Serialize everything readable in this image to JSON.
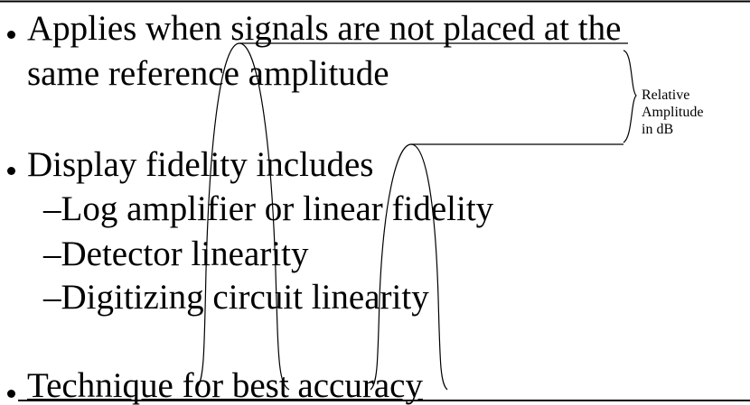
{
  "bullets": [
    {
      "lines": [
        "Applies when signals are not placed at the",
        "same reference amplitude"
      ]
    },
    {
      "lines": [
        "Display fidelity includes"
      ],
      "items": [
        "Log amplifier or linear fidelity",
        "Detector linearity",
        "Digitizing circuit linearity"
      ]
    },
    {
      "lines": [
        "Technique for best accuracy"
      ]
    }
  ],
  "annotation": {
    "lines": [
      "Relative",
      "Amplitude",
      "in dB"
    ]
  }
}
